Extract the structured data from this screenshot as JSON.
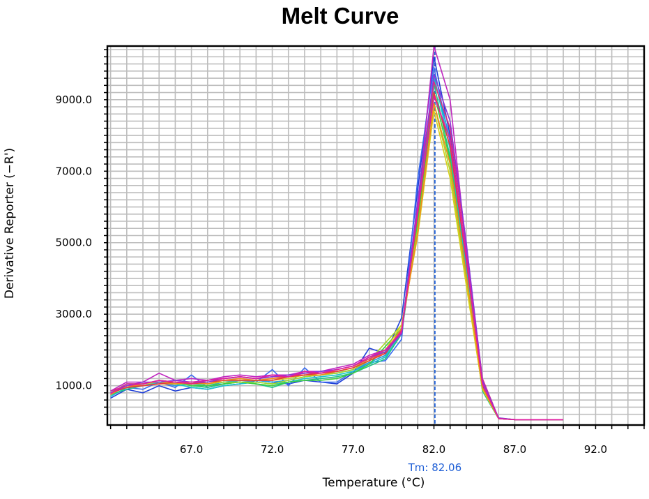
{
  "chart_data": {
    "type": "line",
    "title": "Melt Curve",
    "xlabel": "Temperature (°C)",
    "ylabel": "Derivative Reporter (−R')",
    "xlim": [
      61.8,
      95.0
    ],
    "ylim": [
      -100,
      10500
    ],
    "xticks": [
      67.0,
      72.0,
      77.0,
      82.0,
      87.0,
      92.0
    ],
    "xtick_labels": [
      "67.0",
      "72.0",
      "77.0",
      "82.0",
      "87.0",
      "92.0"
    ],
    "yticks": [
      1000,
      3000,
      5000,
      7000,
      9000
    ],
    "ytick_labels": [
      "1000.0",
      "3000.0",
      "5000.0",
      "7000.0",
      "9000.0"
    ],
    "grid": true,
    "tm_value": 82.06,
    "tm_label": "Tm: 82.06",
    "tm_color": "#1f5fd6",
    "x": [
      62.0,
      63.0,
      64.0,
      65.0,
      66.0,
      67.0,
      68.0,
      69.0,
      70.0,
      71.0,
      72.0,
      73.0,
      74.0,
      75.0,
      76.0,
      77.0,
      78.0,
      79.0,
      80.0,
      81.0,
      82.0,
      83.0,
      84.0,
      85.0,
      86.0,
      87.0,
      88.0,
      89.0,
      90.0
    ],
    "series": [
      {
        "color": "#1f3fd8",
        "values": [
          650,
          900,
          800,
          1000,
          850,
          950,
          900,
          1000,
          1050,
          1150,
          1100,
          1050,
          1150,
          1100,
          1050,
          1350,
          2050,
          1900,
          2900,
          6500,
          10200,
          8000,
          4500,
          1000,
          100,
          50,
          50,
          50,
          50
        ]
      },
      {
        "color": "#3a6cf0",
        "values": [
          700,
          950,
          900,
          1100,
          950,
          1300,
          950,
          1050,
          1150,
          1100,
          1450,
          1000,
          1500,
          1100,
          1100,
          1400,
          1650,
          1700,
          2300,
          6800,
          9900,
          7800,
          4300,
          900,
          80,
          50,
          50,
          50,
          50
        ]
      },
      {
        "color": "#1fa0e0",
        "values": [
          800,
          1000,
          1000,
          1100,
          1000,
          1050,
          1000,
          1100,
          1150,
          1150,
          1100,
          1150,
          1250,
          1300,
          1350,
          1450,
          1650,
          1850,
          2600,
          6000,
          9600,
          7900,
          4400,
          950,
          80,
          50,
          50,
          50,
          50
        ]
      },
      {
        "color": "#19c7c7",
        "values": [
          700,
          950,
          1050,
          1100,
          1050,
          950,
          900,
          1000,
          1050,
          1100,
          1050,
          1100,
          1200,
          1250,
          1300,
          1400,
          1600,
          1800,
          2500,
          5700,
          9700,
          7600,
          4200,
          850,
          80,
          50,
          50,
          50,
          50
        ]
      },
      {
        "color": "#22c486",
        "values": [
          750,
          900,
          1000,
          1050,
          1100,
          1000,
          950,
          1050,
          1100,
          1050,
          950,
          1100,
          1150,
          1200,
          1250,
          1350,
          1550,
          1750,
          2450,
          5600,
          9450,
          7400,
          4100,
          850,
          80,
          50,
          50,
          50,
          50
        ]
      },
      {
        "color": "#3dd03d",
        "values": [
          800,
          1050,
          1050,
          1150,
          1100,
          1000,
          1000,
          1050,
          1100,
          1050,
          1000,
          1100,
          1150,
          1150,
          1200,
          1350,
          1600,
          2100,
          2600,
          5500,
          9200,
          7300,
          4000,
          900,
          80,
          50,
          50,
          50,
          50
        ]
      },
      {
        "color": "#a5d825",
        "values": [
          850,
          1000,
          1050,
          1100,
          1050,
          1050,
          1050,
          1100,
          1100,
          1100,
          1050,
          1150,
          1250,
          1300,
          1350,
          1450,
          1700,
          2200,
          2700,
          5400,
          8900,
          7000,
          3900,
          900,
          80,
          50,
          50,
          50,
          50
        ]
      },
      {
        "color": "#d8d01c",
        "values": [
          800,
          950,
          1050,
          1100,
          1100,
          1050,
          1100,
          1150,
          1150,
          1150,
          1150,
          1200,
          1300,
          1350,
          1400,
          1500,
          1750,
          2000,
          2700,
          5200,
          8700,
          6800,
          3800,
          900,
          80,
          50,
          50,
          50,
          50
        ]
      },
      {
        "color": "#f08c1c",
        "values": [
          750,
          1000,
          1000,
          1050,
          1050,
          1100,
          1050,
          1150,
          1200,
          1150,
          1200,
          1250,
          1300,
          1300,
          1400,
          1500,
          1700,
          1950,
          2600,
          5300,
          8900,
          7200,
          4100,
          950,
          80,
          50,
          50,
          50,
          50
        ]
      },
      {
        "color": "#e83a3a",
        "values": [
          800,
          950,
          1000,
          1050,
          1100,
          1050,
          1100,
          1150,
          1150,
          1150,
          1150,
          1250,
          1300,
          1350,
          1400,
          1500,
          1700,
          1900,
          2500,
          5800,
          9200,
          7700,
          4500,
          1050,
          80,
          50,
          50,
          50,
          50
        ]
      },
      {
        "color": "#e0307a",
        "values": [
          850,
          1000,
          1050,
          1150,
          1100,
          1050,
          1150,
          1200,
          1250,
          1200,
          1250,
          1250,
          1350,
          1350,
          1450,
          1550,
          1750,
          1950,
          2550,
          6100,
          9500,
          8200,
          4800,
          1200,
          90,
          50,
          50,
          50,
          50
        ]
      },
      {
        "color": "#c026c0",
        "values": [
          850,
          1100,
          1100,
          1350,
          1150,
          1200,
          1150,
          1250,
          1300,
          1250,
          1300,
          1300,
          1400,
          1400,
          1500,
          1600,
          1850,
          2000,
          2500,
          6000,
          10500,
          9000,
          4800,
          1100,
          90,
          50,
          50,
          50,
          50
        ]
      },
      {
        "color": "#8c36d8",
        "values": [
          800,
          1000,
          1100,
          1100,
          1150,
          1100,
          1100,
          1200,
          1250,
          1200,
          1250,
          1300,
          1350,
          1400,
          1450,
          1550,
          1800,
          1950,
          2450,
          6200,
          9700,
          8400,
          5000,
          1150,
          90,
          50,
          50,
          50,
          50
        ]
      },
      {
        "color": "#e01ea0",
        "values": [
          780,
          1050,
          1050,
          1150,
          1100,
          1100,
          1150,
          1200,
          1250,
          1200,
          1300,
          1250,
          1400,
          1350,
          1450,
          1550,
          1800,
          2000,
          2500,
          5900,
          9100,
          7900,
          4600,
          1050,
          80,
          50,
          50,
          50,
          50
        ]
      }
    ]
  }
}
